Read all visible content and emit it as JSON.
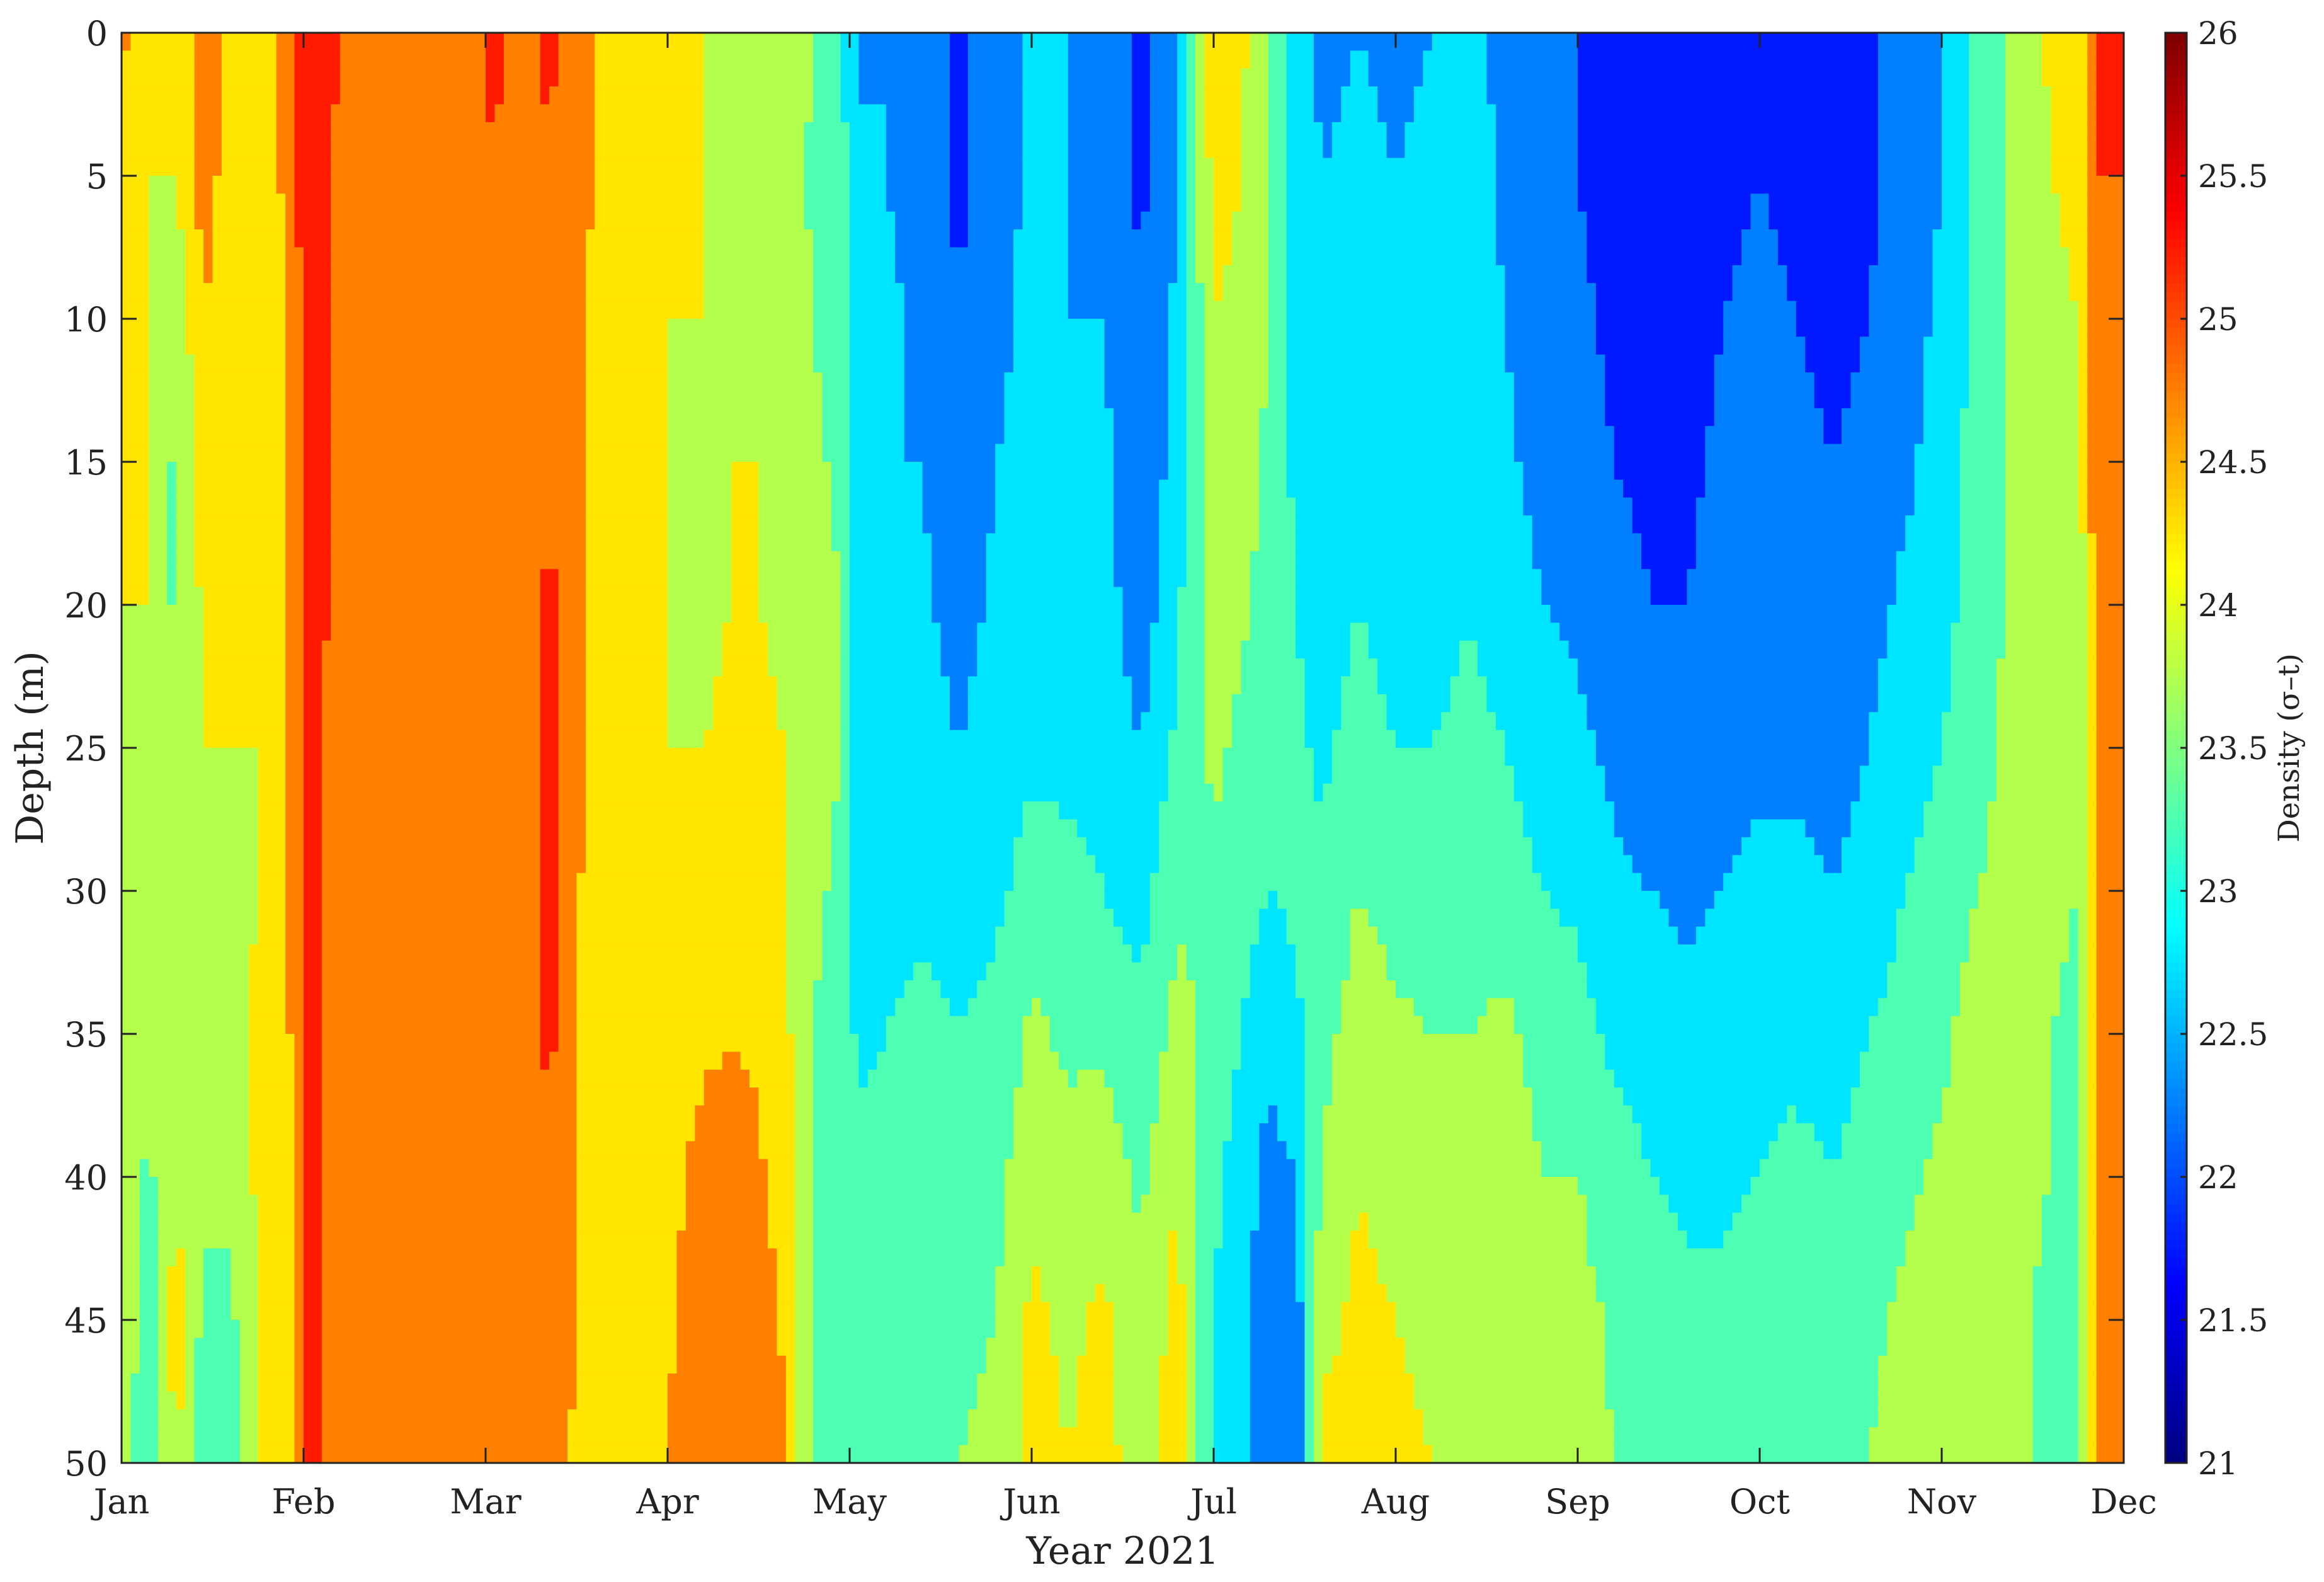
{
  "chart_data": {
    "type": "heatmap",
    "title": "",
    "xlabel": "Year 2021",
    "ylabel": "Depth (m)",
    "colorbar_label": "Density (σ–t)",
    "x_months": [
      "Jan",
      "Feb",
      "Mar",
      "Apr",
      "May",
      "Jun",
      "Jul",
      "Aug",
      "Sep",
      "Oct",
      "Nov",
      "Dec"
    ],
    "xlim_months": [
      0,
      11
    ],
    "y_ticks": [
      0,
      5,
      10,
      15,
      20,
      25,
      30,
      35,
      40,
      45,
      50
    ],
    "ylim": [
      0,
      50
    ],
    "y_reversed": true,
    "depths": [
      0,
      5,
      10,
      15,
      20,
      25,
      30,
      35,
      40,
      45,
      50
    ],
    "colorbar_ticks": [
      21,
      21.5,
      22,
      22.5,
      23,
      23.5,
      24,
      24.5,
      25,
      25.5,
      26
    ],
    "clim": [
      21,
      26
    ],
    "colormap": "jet",
    "grid": false,
    "profiles": [
      {
        "t": 0.0,
        "d": [
          24.6,
          24.5,
          24.4,
          24.2,
          24.0,
          24.0,
          24.0,
          24.0,
          23.9,
          23.8,
          23.6
        ]
      },
      {
        "t": 0.15,
        "d": [
          24.1,
          24.0,
          24.0,
          24.0,
          24.0,
          23.9,
          23.8,
          23.6,
          23.4,
          23.3,
          23.2
        ]
      },
      {
        "t": 0.3,
        "d": [
          24.0,
          24.0,
          23.6,
          23.4,
          23.4,
          23.5,
          23.6,
          23.8,
          24.0,
          24.2,
          24.1
        ]
      },
      {
        "t": 0.45,
        "d": [
          24.8,
          24.7,
          24.5,
          24.3,
          24.1,
          24.0,
          24.0,
          23.8,
          23.6,
          23.4,
          23.2
        ]
      },
      {
        "t": 0.6,
        "d": [
          24.4,
          24.3,
          24.2,
          24.1,
          24.0,
          24.0,
          23.9,
          23.7,
          23.6,
          23.4,
          23.3
        ]
      },
      {
        "t": 0.75,
        "d": [
          24.2,
          24.1,
          24.0,
          24.0,
          24.0,
          24.0,
          24.0,
          24.1,
          24.1,
          24.0,
          24.0
        ]
      },
      {
        "t": 0.9,
        "d": [
          24.6,
          24.6,
          24.5,
          24.5,
          24.5,
          24.5,
          24.4,
          24.3,
          24.2,
          24.1,
          24.0
        ]
      },
      {
        "t": 1.0,
        "d": [
          25.2,
          25.2,
          25.1,
          25.1,
          25.1,
          25.1,
          25.1,
          25.1,
          25.1,
          25.1,
          25.1
        ]
      },
      {
        "t": 1.15,
        "d": [
          25.1,
          25.0,
          25.0,
          25.0,
          25.0,
          24.9,
          24.9,
          24.9,
          24.9,
          24.9,
          24.9
        ]
      },
      {
        "t": 1.3,
        "d": [
          24.8,
          24.7,
          24.6,
          24.6,
          24.6,
          24.6,
          24.6,
          24.6,
          24.6,
          24.6,
          24.6
        ]
      },
      {
        "t": 1.5,
        "d": [
          25.0,
          24.9,
          24.8,
          24.7,
          24.7,
          24.6,
          24.6,
          24.6,
          24.6,
          24.6,
          24.6
        ]
      },
      {
        "t": 1.7,
        "d": [
          24.7,
          24.6,
          24.6,
          24.6,
          24.6,
          24.6,
          24.6,
          24.6,
          24.6,
          24.6,
          24.6
        ]
      },
      {
        "t": 1.9,
        "d": [
          24.9,
          24.8,
          24.7,
          24.6,
          24.6,
          24.6,
          24.6,
          24.6,
          24.6,
          24.6,
          24.6
        ]
      },
      {
        "t": 2.05,
        "d": [
          25.1,
          25.0,
          24.9,
          24.8,
          24.7,
          24.6,
          24.6,
          24.6,
          24.6,
          24.6,
          24.6
        ]
      },
      {
        "t": 2.2,
        "d": [
          24.8,
          24.7,
          24.6,
          24.6,
          24.6,
          24.6,
          24.6,
          24.6,
          24.6,
          24.6,
          24.6
        ]
      },
      {
        "t": 2.35,
        "d": [
          25.1,
          25.0,
          25.0,
          25.0,
          25.1,
          25.1,
          25.1,
          25.1,
          25.0,
          25.0,
          24.9
        ]
      },
      {
        "t": 2.55,
        "d": [
          24.6,
          24.6,
          24.5,
          24.5,
          24.5,
          24.5,
          24.4,
          24.4,
          24.3,
          24.3,
          24.2
        ]
      },
      {
        "t": 2.75,
        "d": [
          24.1,
          24.1,
          24.1,
          24.0,
          24.0,
          24.0,
          24.0,
          24.0,
          24.0,
          24.0,
          24.0
        ]
      },
      {
        "t": 3.0,
        "d": [
          24.0,
          24.0,
          24.0,
          24.0,
          24.0,
          24.0,
          24.1,
          24.2,
          24.3,
          24.4,
          24.5
        ]
      },
      {
        "t": 3.2,
        "d": [
          24.0,
          24.0,
          24.0,
          23.9,
          23.9,
          24.0,
          24.2,
          24.4,
          24.7,
          24.9,
          25.0
        ]
      },
      {
        "t": 3.35,
        "d": [
          23.7,
          23.8,
          23.9,
          24.0,
          24.0,
          24.1,
          24.3,
          24.5,
          24.7,
          24.8,
          24.9
        ]
      },
      {
        "t": 3.5,
        "d": [
          23.9,
          23.9,
          24.0,
          24.0,
          24.0,
          24.1,
          24.2,
          24.4,
          24.6,
          24.8,
          25.0
        ]
      },
      {
        "t": 3.65,
        "d": [
          23.8,
          23.8,
          23.9,
          23.9,
          23.9,
          24.0,
          24.0,
          24.1,
          24.2,
          24.4,
          24.5
        ]
      },
      {
        "t": 3.8,
        "d": [
          23.5,
          23.4,
          23.5,
          23.6,
          23.7,
          23.7,
          23.6,
          23.5,
          23.4,
          23.4,
          23.4
        ]
      },
      {
        "t": 3.95,
        "d": [
          23.1,
          23.2,
          23.3,
          23.4,
          23.5,
          23.5,
          23.4,
          23.3,
          23.3,
          23.3,
          23.3
        ]
      },
      {
        "t": 4.05,
        "d": [
          22.4,
          22.6,
          22.7,
          22.7,
          22.6,
          22.5,
          22.7,
          22.9,
          23.1,
          23.3,
          23.4
        ]
      },
      {
        "t": 4.2,
        "d": [
          22.5,
          22.5,
          22.6,
          22.5,
          22.5,
          22.6,
          22.8,
          23.0,
          23.2,
          23.3,
          23.4
        ]
      },
      {
        "t": 4.4,
        "d": [
          22.2,
          22.3,
          22.4,
          22.5,
          22.6,
          22.7,
          22.9,
          23.1,
          23.3,
          23.4,
          23.5
        ]
      },
      {
        "t": 4.6,
        "d": [
          21.9,
          21.9,
          22.0,
          22.1,
          22.3,
          22.5,
          22.8,
          23.0,
          23.2,
          23.4,
          23.5
        ]
      },
      {
        "t": 4.8,
        "d": [
          22.2,
          22.3,
          22.4,
          22.5,
          22.6,
          22.7,
          22.9,
          23.1,
          23.3,
          23.5,
          23.6
        ]
      },
      {
        "t": 5.0,
        "d": [
          22.6,
          22.6,
          22.6,
          22.6,
          22.7,
          22.9,
          23.2,
          23.6,
          23.9,
          24.1,
          24.2
        ]
      },
      {
        "t": 5.2,
        "d": [
          22.5,
          22.5,
          22.5,
          22.6,
          22.7,
          22.9,
          23.1,
          23.4,
          23.7,
          23.9,
          24.0
        ]
      },
      {
        "t": 5.4,
        "d": [
          22.3,
          22.4,
          22.5,
          22.6,
          22.7,
          22.8,
          23.0,
          23.4,
          23.8,
          24.1,
          24.2
        ]
      },
      {
        "t": 5.6,
        "d": [
          21.9,
          21.9,
          22.0,
          22.1,
          22.2,
          22.5,
          22.8,
          23.1,
          23.4,
          23.6,
          23.7
        ]
      },
      {
        "t": 5.8,
        "d": [
          22.4,
          22.5,
          22.6,
          22.7,
          22.9,
          23.1,
          23.4,
          23.7,
          24.0,
          24.2,
          24.3
        ]
      },
      {
        "t": 6.0,
        "d": [
          24.4,
          24.2,
          24.0,
          23.9,
          23.8,
          23.6,
          23.4,
          23.3,
          23.1,
          23.0,
          22.9
        ]
      },
      {
        "t": 6.15,
        "d": [
          24.1,
          24.0,
          23.9,
          23.8,
          23.6,
          23.4,
          23.2,
          23.0,
          22.8,
          22.7,
          22.6
        ]
      },
      {
        "t": 6.3,
        "d": [
          23.6,
          23.6,
          23.5,
          23.4,
          23.3,
          23.2,
          23.0,
          22.6,
          22.3,
          22.1,
          22.0
        ]
      },
      {
        "t": 6.45,
        "d": [
          22.6,
          22.7,
          22.8,
          22.9,
          23.0,
          23.1,
          23.1,
          22.9,
          22.5,
          22.2,
          22.1
        ]
      },
      {
        "t": 6.6,
        "d": [
          22.4,
          22.5,
          22.6,
          22.7,
          22.8,
          22.9,
          23.1,
          23.3,
          23.6,
          23.9,
          24.1
        ]
      },
      {
        "t": 6.8,
        "d": [
          22.5,
          22.6,
          22.7,
          22.8,
          23.0,
          23.2,
          23.5,
          23.8,
          24.0,
          24.1,
          24.1
        ]
      },
      {
        "t": 7.0,
        "d": [
          22.4,
          22.5,
          22.6,
          22.7,
          22.8,
          23.0,
          23.3,
          23.6,
          23.8,
          24.0,
          24.1
        ]
      },
      {
        "t": 7.2,
        "d": [
          22.5,
          22.6,
          22.6,
          22.7,
          22.8,
          23.0,
          23.2,
          23.5,
          23.7,
          23.9,
          24.0
        ]
      },
      {
        "t": 7.4,
        "d": [
          22.7,
          22.8,
          22.8,
          22.9,
          23.0,
          23.1,
          23.3,
          23.5,
          23.7,
          23.9,
          24.0
        ]
      },
      {
        "t": 7.6,
        "d": [
          22.3,
          22.4,
          22.5,
          22.6,
          22.8,
          23.0,
          23.3,
          23.6,
          23.8,
          23.9,
          24.0
        ]
      },
      {
        "t": 7.8,
        "d": [
          22.1,
          22.1,
          22.2,
          22.3,
          22.5,
          22.7,
          23.0,
          23.3,
          23.5,
          23.7,
          23.8
        ]
      },
      {
        "t": 8.0,
        "d": [
          22.0,
          22.0,
          22.1,
          22.2,
          22.4,
          22.6,
          22.9,
          23.2,
          23.5,
          23.7,
          23.8
        ]
      },
      {
        "t": 8.2,
        "d": [
          21.8,
          21.8,
          21.9,
          22.0,
          22.2,
          22.4,
          22.6,
          22.9,
          23.2,
          23.4,
          23.5
        ]
      },
      {
        "t": 8.4,
        "d": [
          21.7,
          21.7,
          21.8,
          21.9,
          22.0,
          22.2,
          22.5,
          22.8,
          23.0,
          23.2,
          23.3
        ]
      },
      {
        "t": 8.6,
        "d": [
          21.8,
          21.8,
          21.8,
          21.9,
          22.0,
          22.2,
          22.4,
          22.6,
          22.9,
          23.1,
          23.2
        ]
      },
      {
        "t": 8.8,
        "d": [
          21.9,
          21.9,
          22.0,
          22.1,
          22.2,
          22.3,
          22.5,
          22.7,
          22.9,
          23.1,
          23.2
        ]
      },
      {
        "t": 9.0,
        "d": [
          22.0,
          22.0,
          22.1,
          22.2,
          22.3,
          22.4,
          22.6,
          22.8,
          23.0,
          23.2,
          23.3
        ]
      },
      {
        "t": 9.2,
        "d": [
          21.9,
          21.9,
          22.0,
          22.1,
          22.2,
          22.4,
          22.6,
          22.9,
          23.1,
          23.3,
          23.4
        ]
      },
      {
        "t": 9.4,
        "d": [
          21.8,
          21.8,
          21.9,
          22.0,
          22.1,
          22.3,
          22.5,
          22.8,
          23.0,
          23.3,
          23.5
        ]
      },
      {
        "t": 9.6,
        "d": [
          21.9,
          21.9,
          22.0,
          22.1,
          22.3,
          22.5,
          22.7,
          23.0,
          23.2,
          23.4,
          23.5
        ]
      },
      {
        "t": 9.8,
        "d": [
          22.2,
          22.2,
          22.3,
          22.4,
          22.6,
          22.8,
          23.0,
          23.2,
          23.4,
          23.6,
          23.7
        ]
      },
      {
        "t": 10.0,
        "d": [
          22.5,
          22.5,
          22.6,
          22.7,
          22.8,
          23.0,
          23.2,
          23.4,
          23.6,
          23.8,
          23.9
        ]
      },
      {
        "t": 10.2,
        "d": [
          23.1,
          23.1,
          23.2,
          23.2,
          23.3,
          23.4,
          23.5,
          23.7,
          23.8,
          23.9,
          24.0
        ]
      },
      {
        "t": 10.4,
        "d": [
          23.6,
          23.6,
          23.6,
          23.6,
          23.6,
          23.6,
          23.6,
          23.6,
          23.6,
          23.6,
          23.6
        ]
      },
      {
        "t": 10.6,
        "d": [
          24.1,
          24.0,
          23.9,
          23.8,
          23.7,
          23.6,
          23.6,
          23.5,
          23.5,
          23.4,
          23.4
        ]
      },
      {
        "t": 10.75,
        "d": [
          24.3,
          24.1,
          24.0,
          23.8,
          23.7,
          23.6,
          23.5,
          23.4,
          23.4,
          23.3,
          23.3
        ]
      },
      {
        "t": 10.85,
        "d": [
          25.1,
          25.0,
          24.9,
          24.8,
          24.7,
          24.6,
          24.6,
          24.6,
          24.6,
          24.6,
          24.6
        ]
      },
      {
        "t": 11.0,
        "d": [
          25.1,
          25.0,
          24.9,
          24.8,
          24.7,
          24.6,
          24.6,
          24.6,
          24.6,
          24.6,
          24.6
        ]
      }
    ]
  }
}
